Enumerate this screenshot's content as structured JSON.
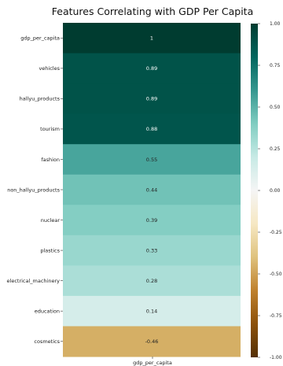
{
  "chart_data": {
    "type": "heatmap",
    "title": "Features Correlating with GDP Per Capita",
    "column": "gdp_per_capita",
    "rows": [
      {
        "label": "gdp_per_capita",
        "value": 1,
        "display": "1"
      },
      {
        "label": "vehicles",
        "value": 0.89,
        "display": "0.89"
      },
      {
        "label": "hallyu_products",
        "value": 0.89,
        "display": "0.89"
      },
      {
        "label": "tourism",
        "value": 0.88,
        "display": "0.88"
      },
      {
        "label": "fashion",
        "value": 0.55,
        "display": "0.55"
      },
      {
        "label": "non_hallyu_products",
        "value": 0.44,
        "display": "0.44"
      },
      {
        "label": "nuclear",
        "value": 0.39,
        "display": "0.39"
      },
      {
        "label": "plastics",
        "value": 0.33,
        "display": "0.33"
      },
      {
        "label": "electrical_machinery",
        "value": 0.28,
        "display": "0.28"
      },
      {
        "label": "education",
        "value": 0.14,
        "display": "0.14"
      },
      {
        "label": "cosmetics",
        "value": -0.46,
        "display": "-0.46"
      }
    ],
    "colorbar": {
      "colormap": "BrBG",
      "vmin": -1,
      "vmax": 1,
      "ticks": [
        {
          "value": 1,
          "label": "1.00"
        },
        {
          "value": 0.75,
          "label": "0.75"
        },
        {
          "value": 0.5,
          "label": "0.50"
        },
        {
          "value": 0.25,
          "label": "0.25"
        },
        {
          "value": 0,
          "label": "0.00"
        },
        {
          "value": -0.25,
          "label": "-0.25"
        },
        {
          "value": -0.5,
          "label": "-0.50"
        },
        {
          "value": -0.75,
          "label": "-0.75"
        },
        {
          "value": -1,
          "label": "-1.00"
        }
      ]
    }
  }
}
